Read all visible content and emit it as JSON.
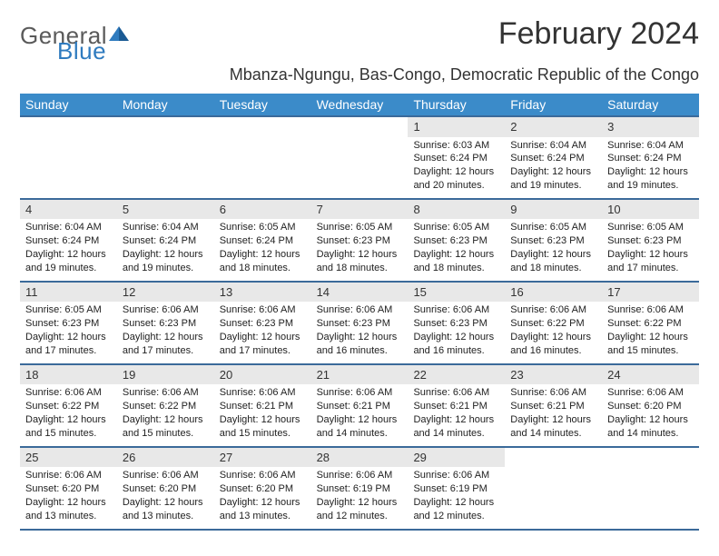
{
  "logo": {
    "part1": "General",
    "part2": "Blue"
  },
  "title": "February 2024",
  "subtitle": "Mbanza-Ngungu, Bas-Congo, Democratic Republic of the Congo",
  "days_of_week": [
    "Sunday",
    "Monday",
    "Tuesday",
    "Wednesday",
    "Thursday",
    "Friday",
    "Saturday"
  ],
  "colors": {
    "header_bg": "#3b8bc9",
    "header_text": "#ffffff",
    "row_border": "#3b6a9a",
    "daynum_bg": "#e8e8e8",
    "logo_gray": "#5a5a5a",
    "logo_blue": "#2f7bbf",
    "text": "#333333"
  },
  "weeks": [
    [
      {
        "empty": true
      },
      {
        "empty": true
      },
      {
        "empty": true
      },
      {
        "empty": true
      },
      {
        "day": "1",
        "sunrise": "Sunrise: 6:03 AM",
        "sunset": "Sunset: 6:24 PM",
        "daylight1": "Daylight: 12 hours",
        "daylight2": "and 20 minutes."
      },
      {
        "day": "2",
        "sunrise": "Sunrise: 6:04 AM",
        "sunset": "Sunset: 6:24 PM",
        "daylight1": "Daylight: 12 hours",
        "daylight2": "and 19 minutes."
      },
      {
        "day": "3",
        "sunrise": "Sunrise: 6:04 AM",
        "sunset": "Sunset: 6:24 PM",
        "daylight1": "Daylight: 12 hours",
        "daylight2": "and 19 minutes."
      }
    ],
    [
      {
        "day": "4",
        "sunrise": "Sunrise: 6:04 AM",
        "sunset": "Sunset: 6:24 PM",
        "daylight1": "Daylight: 12 hours",
        "daylight2": "and 19 minutes."
      },
      {
        "day": "5",
        "sunrise": "Sunrise: 6:04 AM",
        "sunset": "Sunset: 6:24 PM",
        "daylight1": "Daylight: 12 hours",
        "daylight2": "and 19 minutes."
      },
      {
        "day": "6",
        "sunrise": "Sunrise: 6:05 AM",
        "sunset": "Sunset: 6:24 PM",
        "daylight1": "Daylight: 12 hours",
        "daylight2": "and 18 minutes."
      },
      {
        "day": "7",
        "sunrise": "Sunrise: 6:05 AM",
        "sunset": "Sunset: 6:23 PM",
        "daylight1": "Daylight: 12 hours",
        "daylight2": "and 18 minutes."
      },
      {
        "day": "8",
        "sunrise": "Sunrise: 6:05 AM",
        "sunset": "Sunset: 6:23 PM",
        "daylight1": "Daylight: 12 hours",
        "daylight2": "and 18 minutes."
      },
      {
        "day": "9",
        "sunrise": "Sunrise: 6:05 AM",
        "sunset": "Sunset: 6:23 PM",
        "daylight1": "Daylight: 12 hours",
        "daylight2": "and 18 minutes."
      },
      {
        "day": "10",
        "sunrise": "Sunrise: 6:05 AM",
        "sunset": "Sunset: 6:23 PM",
        "daylight1": "Daylight: 12 hours",
        "daylight2": "and 17 minutes."
      }
    ],
    [
      {
        "day": "11",
        "sunrise": "Sunrise: 6:05 AM",
        "sunset": "Sunset: 6:23 PM",
        "daylight1": "Daylight: 12 hours",
        "daylight2": "and 17 minutes."
      },
      {
        "day": "12",
        "sunrise": "Sunrise: 6:06 AM",
        "sunset": "Sunset: 6:23 PM",
        "daylight1": "Daylight: 12 hours",
        "daylight2": "and 17 minutes."
      },
      {
        "day": "13",
        "sunrise": "Sunrise: 6:06 AM",
        "sunset": "Sunset: 6:23 PM",
        "daylight1": "Daylight: 12 hours",
        "daylight2": "and 17 minutes."
      },
      {
        "day": "14",
        "sunrise": "Sunrise: 6:06 AM",
        "sunset": "Sunset: 6:23 PM",
        "daylight1": "Daylight: 12 hours",
        "daylight2": "and 16 minutes."
      },
      {
        "day": "15",
        "sunrise": "Sunrise: 6:06 AM",
        "sunset": "Sunset: 6:23 PM",
        "daylight1": "Daylight: 12 hours",
        "daylight2": "and 16 minutes."
      },
      {
        "day": "16",
        "sunrise": "Sunrise: 6:06 AM",
        "sunset": "Sunset: 6:22 PM",
        "daylight1": "Daylight: 12 hours",
        "daylight2": "and 16 minutes."
      },
      {
        "day": "17",
        "sunrise": "Sunrise: 6:06 AM",
        "sunset": "Sunset: 6:22 PM",
        "daylight1": "Daylight: 12 hours",
        "daylight2": "and 15 minutes."
      }
    ],
    [
      {
        "day": "18",
        "sunrise": "Sunrise: 6:06 AM",
        "sunset": "Sunset: 6:22 PM",
        "daylight1": "Daylight: 12 hours",
        "daylight2": "and 15 minutes."
      },
      {
        "day": "19",
        "sunrise": "Sunrise: 6:06 AM",
        "sunset": "Sunset: 6:22 PM",
        "daylight1": "Daylight: 12 hours",
        "daylight2": "and 15 minutes."
      },
      {
        "day": "20",
        "sunrise": "Sunrise: 6:06 AM",
        "sunset": "Sunset: 6:21 PM",
        "daylight1": "Daylight: 12 hours",
        "daylight2": "and 15 minutes."
      },
      {
        "day": "21",
        "sunrise": "Sunrise: 6:06 AM",
        "sunset": "Sunset: 6:21 PM",
        "daylight1": "Daylight: 12 hours",
        "daylight2": "and 14 minutes."
      },
      {
        "day": "22",
        "sunrise": "Sunrise: 6:06 AM",
        "sunset": "Sunset: 6:21 PM",
        "daylight1": "Daylight: 12 hours",
        "daylight2": "and 14 minutes."
      },
      {
        "day": "23",
        "sunrise": "Sunrise: 6:06 AM",
        "sunset": "Sunset: 6:21 PM",
        "daylight1": "Daylight: 12 hours",
        "daylight2": "and 14 minutes."
      },
      {
        "day": "24",
        "sunrise": "Sunrise: 6:06 AM",
        "sunset": "Sunset: 6:20 PM",
        "daylight1": "Daylight: 12 hours",
        "daylight2": "and 14 minutes."
      }
    ],
    [
      {
        "day": "25",
        "sunrise": "Sunrise: 6:06 AM",
        "sunset": "Sunset: 6:20 PM",
        "daylight1": "Daylight: 12 hours",
        "daylight2": "and 13 minutes."
      },
      {
        "day": "26",
        "sunrise": "Sunrise: 6:06 AM",
        "sunset": "Sunset: 6:20 PM",
        "daylight1": "Daylight: 12 hours",
        "daylight2": "and 13 minutes."
      },
      {
        "day": "27",
        "sunrise": "Sunrise: 6:06 AM",
        "sunset": "Sunset: 6:20 PM",
        "daylight1": "Daylight: 12 hours",
        "daylight2": "and 13 minutes."
      },
      {
        "day": "28",
        "sunrise": "Sunrise: 6:06 AM",
        "sunset": "Sunset: 6:19 PM",
        "daylight1": "Daylight: 12 hours",
        "daylight2": "and 12 minutes."
      },
      {
        "day": "29",
        "sunrise": "Sunrise: 6:06 AM",
        "sunset": "Sunset: 6:19 PM",
        "daylight1": "Daylight: 12 hours",
        "daylight2": "and 12 minutes."
      },
      {
        "empty": true
      },
      {
        "empty": true
      }
    ]
  ]
}
